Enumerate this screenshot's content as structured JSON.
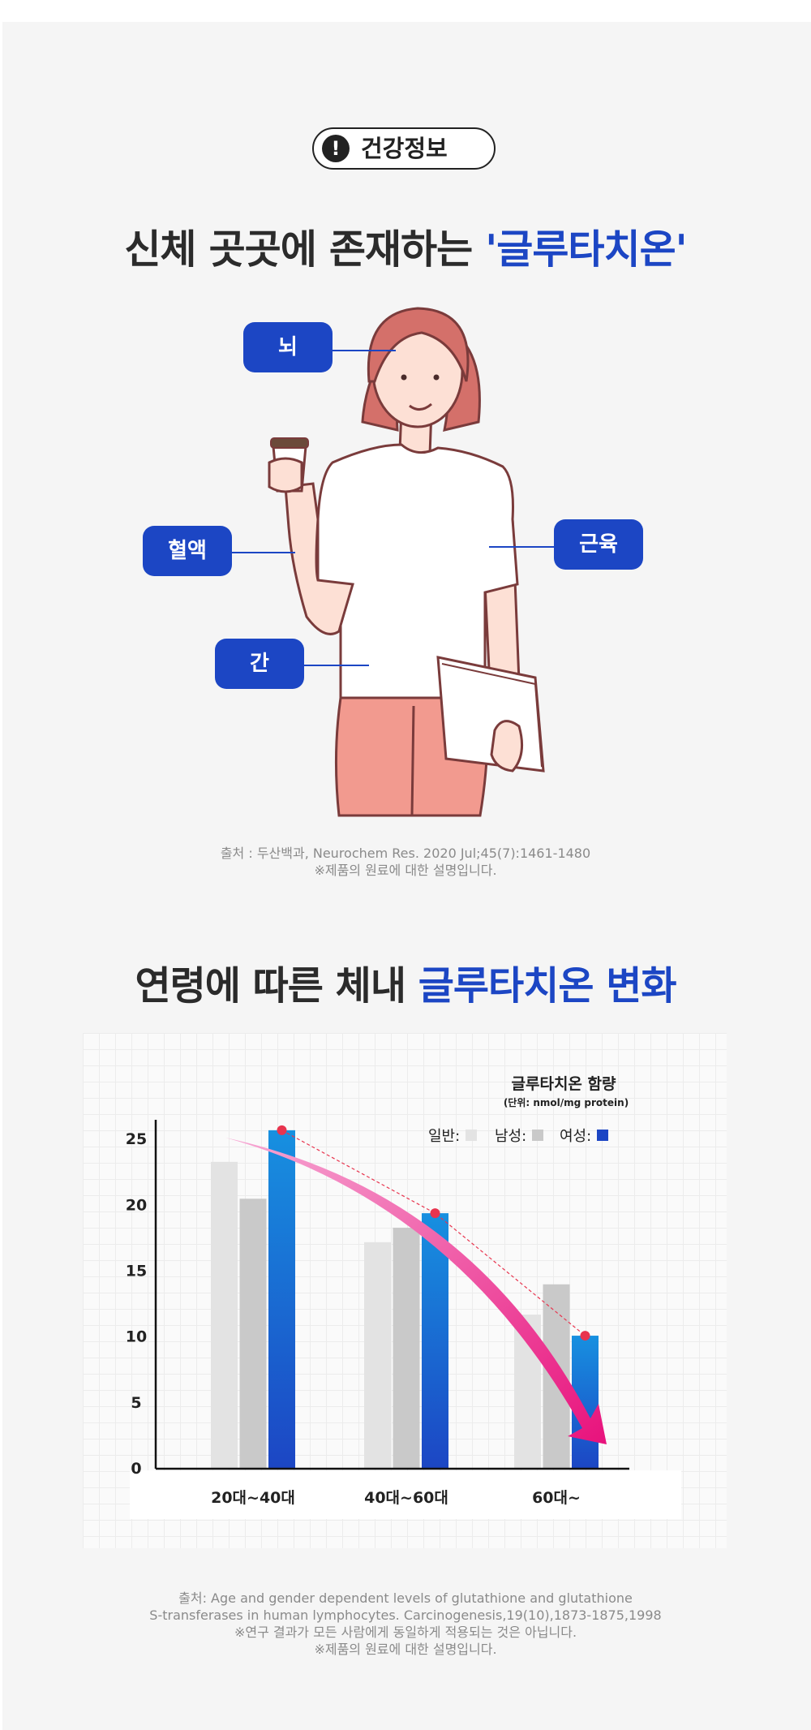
{
  "header": {
    "badge_label": "건강정보",
    "badge_icon": "exclamation-icon",
    "title_prefix": "신체 곳곳에 존재하는 ",
    "title_highlight": "'글루타치온'"
  },
  "body_labels": {
    "brain": "뇌",
    "blood": "혈액",
    "muscle": "근육",
    "liver": "간"
  },
  "source_1": {
    "line1": "출처 : 두산백과, Neurochem Res. 2020 Jul;45(7):1461-1480",
    "line2": "※제품의 원료에 대한 설명입니다."
  },
  "section2": {
    "title_prefix": "연령에 따른 체내 ",
    "title_highlight": "글루타치온 변화"
  },
  "chart_data": {
    "type": "bar",
    "title": "글루타치온 함량",
    "subtitle": "(단위: nmol/mg protein)",
    "categories": [
      "20대~40대",
      "40대~60대",
      "60대~"
    ],
    "series": [
      {
        "name": "일반",
        "color": "#e3e3e3",
        "values": [
          23.3,
          17.2,
          11.7
        ]
      },
      {
        "name": "남성",
        "color": "#c9c9c9",
        "values": [
          20.5,
          18.3,
          14.0
        ]
      },
      {
        "name": "여성",
        "color": "#1c46c4",
        "values": [
          25.7,
          19.4,
          10.1
        ]
      }
    ],
    "legend_suffix": ":",
    "yticks": [
      0,
      5,
      10,
      15,
      20,
      25
    ],
    "ylim": [
      0,
      26
    ],
    "legend_position": "top-right",
    "trend_arrow_color": "#e8127c",
    "marker_color": "#e8344e",
    "grid": true
  },
  "source_2": {
    "line1": "출처: Age and gender dependent levels of glutathione and glutathione",
    "line2": "S-transferases in human lymphocytes. Carcinogenesis,19(10),1873-1875,1998",
    "line3": "※연구 결과가 모든 사람에게 동일하게 적용되는 것은 아닙니다.",
    "line4": "※제품의 원료에 대한 설명입니다."
  }
}
